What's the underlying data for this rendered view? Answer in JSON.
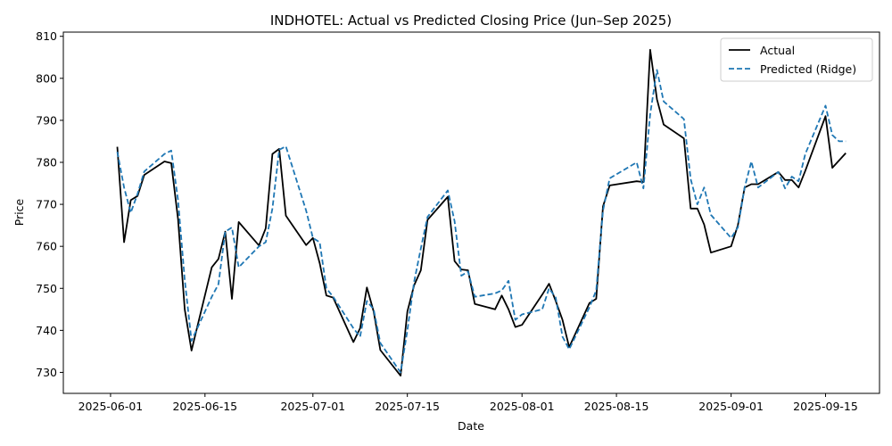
{
  "chart_data": {
    "type": "line",
    "title": "INDHOTEL: Actual vs Predicted Closing Price (Jun–Sep 2025)",
    "xlabel": "Date",
    "ylabel": "Price",
    "xlim": [
      "2025-05-25",
      "2025-09-23"
    ],
    "ylim": [
      725,
      811
    ],
    "x_ticks": [
      "2025-06-01",
      "2025-06-15",
      "2025-07-01",
      "2025-07-15",
      "2025-08-01",
      "2025-08-15",
      "2025-09-01",
      "2025-09-15"
    ],
    "y_ticks": [
      730,
      740,
      750,
      760,
      770,
      780,
      790,
      800,
      810
    ],
    "grid": false,
    "legend_position": "top-right",
    "colors": {
      "actual": "#000000",
      "predicted": "#1f77b4"
    },
    "series": [
      {
        "name": "Actual",
        "style": "solid",
        "points": [
          [
            "2025-06-02",
            783.7
          ],
          [
            "2025-06-03",
            761.0
          ],
          [
            "2025-06-04",
            771.0
          ],
          [
            "2025-06-05",
            772.0
          ],
          [
            "2025-06-06",
            777.0
          ],
          [
            "2025-06-09",
            780.2
          ],
          [
            "2025-06-10",
            779.8
          ],
          [
            "2025-06-11",
            766.5
          ],
          [
            "2025-06-12",
            745.0
          ],
          [
            "2025-06-13",
            735.2
          ],
          [
            "2025-06-16",
            755.0
          ],
          [
            "2025-06-17",
            757.0
          ],
          [
            "2025-06-18",
            763.5
          ],
          [
            "2025-06-19",
            747.5
          ],
          [
            "2025-06-20",
            765.8
          ],
          [
            "2025-06-23",
            760.2
          ],
          [
            "2025-06-24",
            764.3
          ],
          [
            "2025-06-25",
            782.0
          ],
          [
            "2025-06-26",
            783.2
          ],
          [
            "2025-06-27",
            767.3
          ],
          [
            "2025-06-30",
            760.3
          ],
          [
            "2025-07-01",
            762.0
          ],
          [
            "2025-07-02",
            756.0
          ],
          [
            "2025-07-03",
            748.3
          ],
          [
            "2025-07-04",
            747.8
          ],
          [
            "2025-07-07",
            737.2
          ],
          [
            "2025-07-08",
            740.5
          ],
          [
            "2025-07-09",
            750.2
          ],
          [
            "2025-07-10",
            744.5
          ],
          [
            "2025-07-11",
            735.3
          ],
          [
            "2025-07-14",
            729.2
          ],
          [
            "2025-07-15",
            744.5
          ],
          [
            "2025-07-16",
            750.7
          ],
          [
            "2025-07-17",
            754.3
          ],
          [
            "2025-07-18",
            766.3
          ],
          [
            "2025-07-21",
            771.8
          ],
          [
            "2025-07-22",
            756.5
          ],
          [
            "2025-07-23",
            754.5
          ],
          [
            "2025-07-24",
            754.3
          ],
          [
            "2025-07-25",
            746.3
          ],
          [
            "2025-07-28",
            745.0
          ],
          [
            "2025-07-29",
            748.3
          ],
          [
            "2025-07-30",
            745.0
          ],
          [
            "2025-07-31",
            740.8
          ],
          [
            "2025-08-01",
            741.3
          ],
          [
            "2025-08-04",
            748.5
          ],
          [
            "2025-08-05",
            751.1
          ],
          [
            "2025-08-06",
            747.0
          ],
          [
            "2025-08-07",
            742.5
          ],
          [
            "2025-08-08",
            736.0
          ],
          [
            "2025-08-11",
            746.5
          ],
          [
            "2025-08-12",
            747.5
          ],
          [
            "2025-08-13",
            769.5
          ],
          [
            "2025-08-14",
            774.5
          ],
          [
            "2025-08-18",
            775.5
          ],
          [
            "2025-08-19",
            775.3
          ],
          [
            "2025-08-20",
            806.8
          ],
          [
            "2025-08-21",
            795.0
          ],
          [
            "2025-08-22",
            789.0
          ],
          [
            "2025-08-25",
            785.7
          ],
          [
            "2025-08-26",
            769.0
          ],
          [
            "2025-08-27",
            769.0
          ],
          [
            "2025-08-28",
            765.2
          ],
          [
            "2025-08-29",
            758.5
          ],
          [
            "2025-09-01",
            760.0
          ],
          [
            "2025-09-02",
            765.0
          ],
          [
            "2025-09-03",
            774.0
          ],
          [
            "2025-09-04",
            774.8
          ],
          [
            "2025-09-05",
            774.8
          ],
          [
            "2025-09-08",
            777.7
          ],
          [
            "2025-09-09",
            775.8
          ],
          [
            "2025-09-10",
            775.8
          ],
          [
            "2025-09-11",
            774.0
          ],
          [
            "2025-09-12",
            778.0
          ],
          [
            "2025-09-15",
            791.0
          ],
          [
            "2025-09-16",
            778.7
          ],
          [
            "2025-09-18",
            782.2
          ]
        ]
      },
      {
        "name": "Predicted (Ridge)",
        "style": "dashed",
        "points": [
          [
            "2025-06-02",
            782.5
          ],
          [
            "2025-06-03",
            774.0
          ],
          [
            "2025-06-04",
            768.0
          ],
          [
            "2025-06-05",
            772.5
          ],
          [
            "2025-06-06",
            777.8
          ],
          [
            "2025-06-09",
            782.0
          ],
          [
            "2025-06-10",
            782.8
          ],
          [
            "2025-06-11",
            771.0
          ],
          [
            "2025-06-12",
            752.0
          ],
          [
            "2025-06-13",
            737.5
          ],
          [
            "2025-06-16",
            748.0
          ],
          [
            "2025-06-17",
            751.0
          ],
          [
            "2025-06-18",
            763.5
          ],
          [
            "2025-06-19",
            764.5
          ],
          [
            "2025-06-20",
            755.0
          ],
          [
            "2025-06-23",
            760.0
          ],
          [
            "2025-06-24",
            761.0
          ],
          [
            "2025-06-25",
            769.0
          ],
          [
            "2025-06-26",
            783.0
          ],
          [
            "2025-06-27",
            783.8
          ],
          [
            "2025-06-30",
            768.5
          ],
          [
            "2025-07-01",
            762.0
          ],
          [
            "2025-07-02",
            761.0
          ],
          [
            "2025-07-03",
            750.0
          ],
          [
            "2025-07-04",
            748.0
          ],
          [
            "2025-07-07",
            740.5
          ],
          [
            "2025-07-08",
            738.5
          ],
          [
            "2025-07-09",
            747.0
          ],
          [
            "2025-07-10",
            745.0
          ],
          [
            "2025-07-11",
            737.0
          ],
          [
            "2025-07-14",
            730.0
          ],
          [
            "2025-07-15",
            740.0
          ],
          [
            "2025-07-16",
            751.5
          ],
          [
            "2025-07-17",
            759.5
          ],
          [
            "2025-07-18",
            767.0
          ],
          [
            "2025-07-21",
            773.3
          ],
          [
            "2025-07-22",
            766.0
          ],
          [
            "2025-07-23",
            753.0
          ],
          [
            "2025-07-24",
            754.0
          ],
          [
            "2025-07-25",
            748.0
          ],
          [
            "2025-07-28",
            748.8
          ],
          [
            "2025-07-29",
            749.5
          ],
          [
            "2025-07-30",
            751.8
          ],
          [
            "2025-07-31",
            742.5
          ],
          [
            "2025-08-01",
            743.8
          ],
          [
            "2025-08-04",
            745.0
          ],
          [
            "2025-08-05",
            750.0
          ],
          [
            "2025-08-06",
            747.8
          ],
          [
            "2025-08-07",
            738.5
          ],
          [
            "2025-08-08",
            735.5
          ],
          [
            "2025-08-11",
            745.5
          ],
          [
            "2025-08-12",
            749.5
          ],
          [
            "2025-08-13",
            768.5
          ],
          [
            "2025-08-14",
            776.2
          ],
          [
            "2025-08-18",
            780.0
          ],
          [
            "2025-08-19",
            773.8
          ],
          [
            "2025-08-20",
            791.5
          ],
          [
            "2025-08-21",
            802.0
          ],
          [
            "2025-08-22",
            794.5
          ],
          [
            "2025-08-25",
            790.3
          ],
          [
            "2025-08-26",
            776.0
          ],
          [
            "2025-08-27",
            770.0
          ],
          [
            "2025-08-28",
            774.0
          ],
          [
            "2025-08-29",
            767.5
          ],
          [
            "2025-09-01",
            762.0
          ],
          [
            "2025-09-02",
            764.5
          ],
          [
            "2025-09-03",
            774.0
          ],
          [
            "2025-09-04",
            780.2
          ],
          [
            "2025-09-05",
            774.0
          ],
          [
            "2025-09-08",
            777.7
          ],
          [
            "2025-09-09",
            773.8
          ],
          [
            "2025-09-10",
            776.6
          ],
          [
            "2025-09-11",
            775.5
          ],
          [
            "2025-09-12",
            782.0
          ],
          [
            "2025-09-15",
            793.5
          ],
          [
            "2025-09-16",
            786.5
          ],
          [
            "2025-09-17",
            785.0
          ],
          [
            "2025-09-18",
            785.0
          ]
        ]
      }
    ]
  }
}
